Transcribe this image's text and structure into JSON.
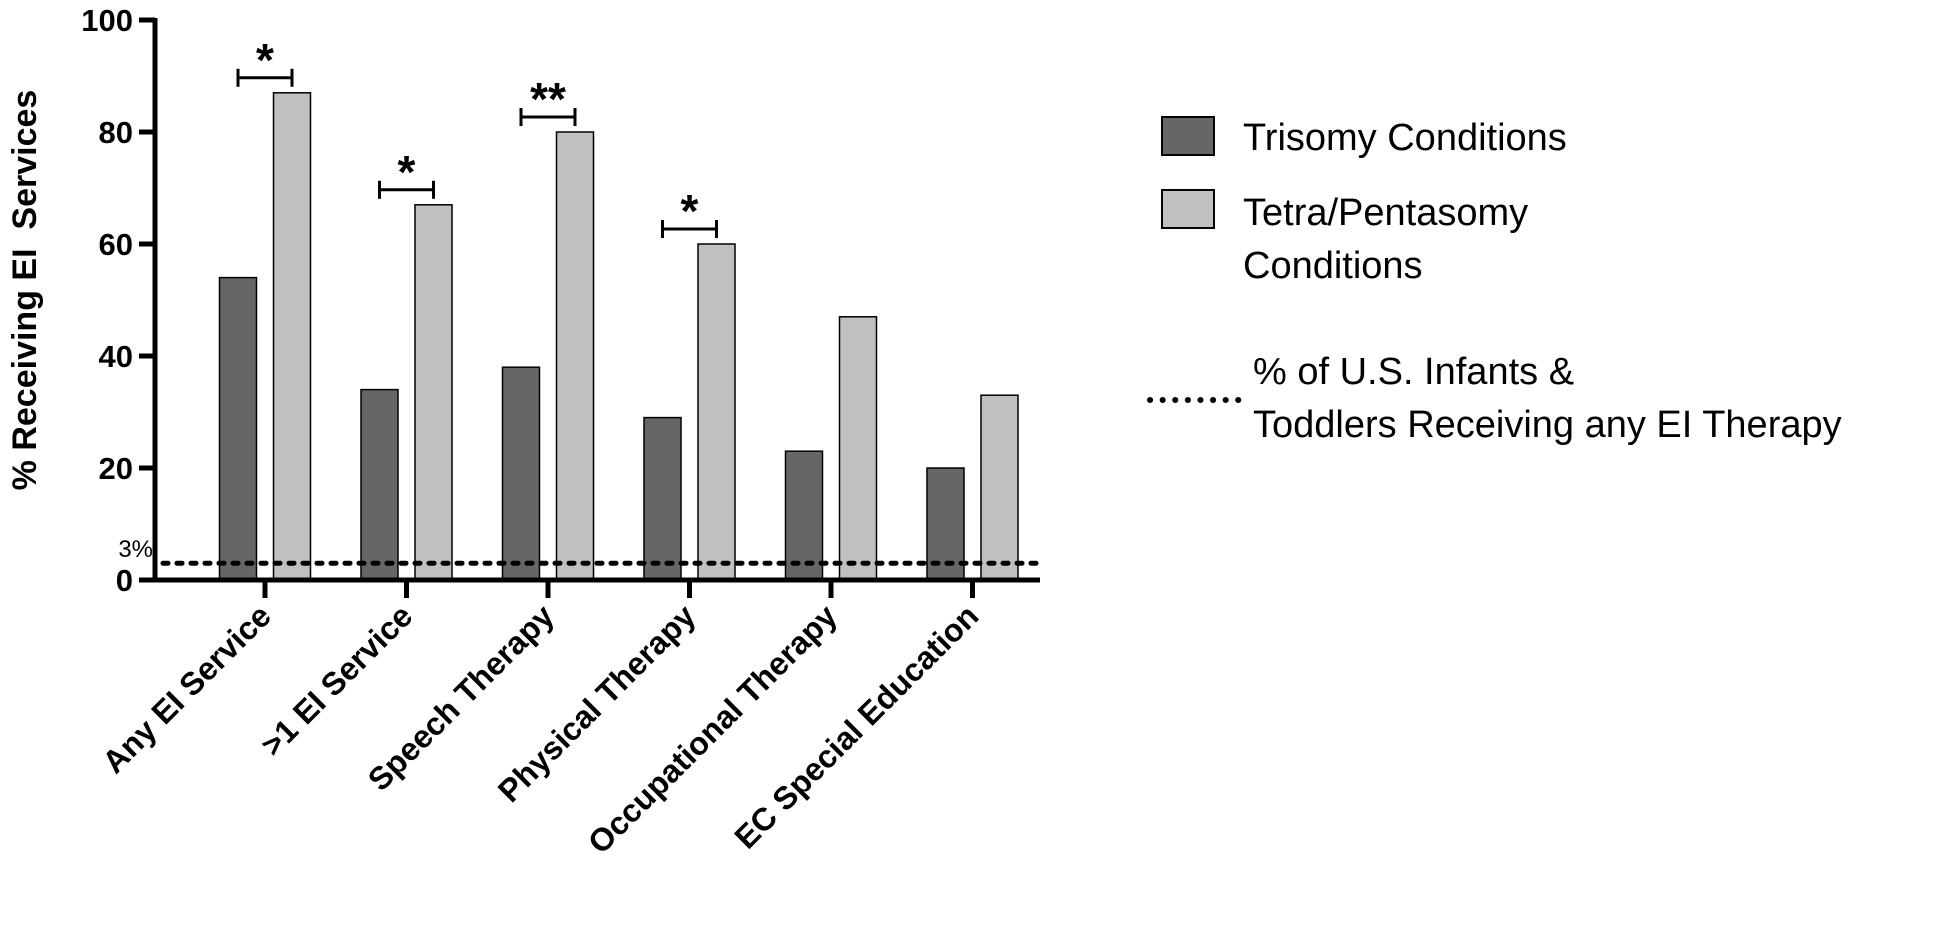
{
  "chart_data": {
    "type": "bar",
    "categories": [
      "Any EI Service",
      ">1 EI Service",
      "Speech Therapy",
      "Physical Therapy",
      "Occupational Therapy",
      "EC Special Education"
    ],
    "series": [
      {
        "name": "Trisomy Conditions",
        "values": [
          54,
          34,
          38,
          29,
          23,
          20
        ],
        "color": "#666666"
      },
      {
        "name": "Tetra/Pentasomy Conditions",
        "values": [
          87,
          67,
          80,
          60,
          47,
          33
        ],
        "color": "#c0c0c0"
      }
    ],
    "legend_lines": {
      "trisomy": [
        "Trisomy Conditions"
      ],
      "tetra": [
        "Tetra/Pentasomy",
        "Conditions"
      ],
      "reference": [
        "% of U.S. Infants &",
        "Toddlers Receiving any EI Therapy"
      ]
    },
    "ylabel": "% Receiving EI  Services",
    "xlabel": "",
    "ylim": [
      0,
      100
    ],
    "yticks": [
      0,
      20,
      40,
      60,
      80,
      100
    ],
    "reference_line": {
      "value": 3,
      "label": "3%",
      "style": "dotted"
    },
    "significance": [
      {
        "category_index": 0,
        "label": "*"
      },
      {
        "category_index": 1,
        "label": "*"
      },
      {
        "category_index": 2,
        "label": "**"
      },
      {
        "category_index": 3,
        "label": "*"
      }
    ],
    "legend_position": "right",
    "grid": false
  }
}
